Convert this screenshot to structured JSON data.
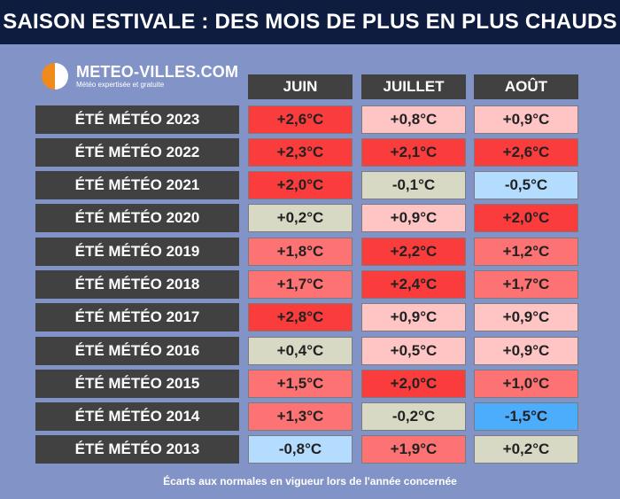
{
  "title": "SAISON ESTIVALE : DES MOIS DE PLUS EN PLUS CHAUDS",
  "logo": {
    "name": "METEO-VILLES.COM",
    "tagline": "Météo expertisée et gratuite"
  },
  "months": [
    "JUIN",
    "JUILLET",
    "AOÛT"
  ],
  "colors": {
    "very_hot": "#fa3c3c",
    "hot": "#fd7272",
    "warm": "#ffc4c4",
    "neutral": "#d8d9c4",
    "cool": "#b3dcff",
    "cold": "#4cadfc"
  },
  "rows": [
    {
      "label": "ÉTÉ MÉTÉO 2023",
      "values": [
        "+2,6°C",
        "+0,8°C",
        "+0,9°C"
      ],
      "levels": [
        "very_hot",
        "warm",
        "warm"
      ]
    },
    {
      "label": "ÉTÉ MÉTÉO 2022",
      "values": [
        "+2,3°C",
        "+2,1°C",
        "+2,6°C"
      ],
      "levels": [
        "very_hot",
        "very_hot",
        "very_hot"
      ]
    },
    {
      "label": "ÉTÉ MÉTÉO 2021",
      "values": [
        "+2,0°C",
        "-0,1°C",
        "-0,5°C"
      ],
      "levels": [
        "very_hot",
        "neutral",
        "cool"
      ]
    },
    {
      "label": "ÉTÉ MÉTÉO 2020",
      "values": [
        "+0,2°C",
        "+0,9°C",
        "+2,0°C"
      ],
      "levels": [
        "neutral",
        "warm",
        "very_hot"
      ]
    },
    {
      "label": "ÉTÉ MÉTÉO 2019",
      "values": [
        "+1,8°C",
        "+2,2°C",
        "+1,2°C"
      ],
      "levels": [
        "hot",
        "very_hot",
        "hot"
      ]
    },
    {
      "label": "ÉTÉ MÉTÉO 2018",
      "values": [
        "+1,7°C",
        "+2,4°C",
        "+1,7°C"
      ],
      "levels": [
        "hot",
        "very_hot",
        "hot"
      ]
    },
    {
      "label": "ÉTÉ MÉTÉO 2017",
      "values": [
        "+2,8°C",
        "+0,9°C",
        "+0,9°C"
      ],
      "levels": [
        "very_hot",
        "warm",
        "warm"
      ]
    },
    {
      "label": "ÉTÉ MÉTÉO 2016",
      "values": [
        "+0,4°C",
        "+0,5°C",
        "+0,9°C"
      ],
      "levels": [
        "neutral",
        "warm",
        "warm"
      ]
    },
    {
      "label": "ÉTÉ MÉTÉO 2015",
      "values": [
        "+1,5°C",
        "+2,0°C",
        "+1,0°C"
      ],
      "levels": [
        "hot",
        "very_hot",
        "hot"
      ]
    },
    {
      "label": "ÉTÉ MÉTÉO 2014",
      "values": [
        "+1,3°C",
        "-0,2°C",
        "-1,5°C"
      ],
      "levels": [
        "hot",
        "neutral",
        "cold"
      ]
    },
    {
      "label": "ÉTÉ MÉTÉO 2013",
      "values": [
        "-0,8°C",
        "+1,9°C",
        "+0,2°C"
      ],
      "levels": [
        "cool",
        "hot",
        "neutral"
      ]
    }
  ],
  "footnote": "Écarts aux normales en vigueur lors de l'année concernée"
}
